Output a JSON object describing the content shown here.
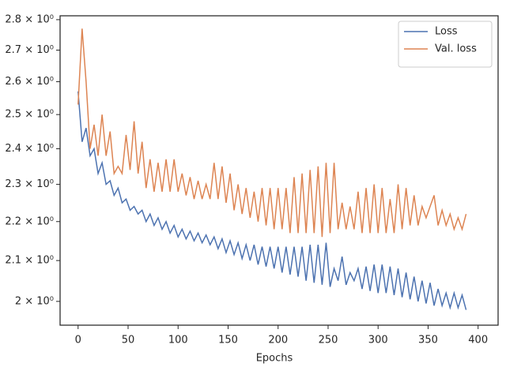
{
  "chart_data": {
    "type": "line",
    "x_label": "Epochs",
    "y_scale": "log",
    "grid": false,
    "legend": "upper right",
    "xlim": [
      -18,
      420
    ],
    "xticks": [
      0,
      50,
      100,
      150,
      200,
      250,
      300,
      350,
      400
    ],
    "ylim": [
      1.944,
      2.813
    ],
    "yticks": [
      {
        "value": 2.0,
        "label": "2 × 10⁰"
      },
      {
        "value": 2.1,
        "label": "2.1 × 10⁰"
      },
      {
        "value": 2.2,
        "label": "2.2 × 10⁰"
      },
      {
        "value": 2.3,
        "label": "2.3 × 10⁰"
      },
      {
        "value": 2.4,
        "label": "2.4 × 10⁰"
      },
      {
        "value": 2.5,
        "label": "2.5 × 10⁰"
      },
      {
        "value": 2.6,
        "label": "2.6 × 10⁰"
      },
      {
        "value": 2.7,
        "label": "2.7 × 10⁰"
      },
      {
        "value": 2.8,
        "label": "2.8 × 10⁰"
      }
    ],
    "x": [
      0,
      4,
      8,
      12,
      16,
      20,
      24,
      28,
      32,
      36,
      40,
      44,
      48,
      52,
      56,
      60,
      64,
      68,
      72,
      76,
      80,
      84,
      88,
      92,
      96,
      100,
      104,
      108,
      112,
      116,
      120,
      124,
      128,
      132,
      136,
      140,
      144,
      148,
      152,
      156,
      160,
      164,
      168,
      172,
      176,
      180,
      184,
      188,
      192,
      196,
      200,
      204,
      208,
      212,
      216,
      220,
      224,
      228,
      232,
      236,
      240,
      244,
      248,
      252,
      256,
      260,
      264,
      268,
      272,
      276,
      280,
      284,
      288,
      292,
      296,
      300,
      304,
      308,
      312,
      316,
      320,
      324,
      328,
      332,
      336,
      340,
      344,
      348,
      352,
      356,
      360,
      364,
      368,
      372,
      376,
      380,
      384,
      388
    ],
    "series": [
      {
        "name": "Loss",
        "color": "#4c72b0",
        "values": [
          2.57,
          2.42,
          2.46,
          2.38,
          2.4,
          2.33,
          2.36,
          2.3,
          2.31,
          2.27,
          2.29,
          2.25,
          2.26,
          2.23,
          2.24,
          2.22,
          2.23,
          2.2,
          2.22,
          2.19,
          2.21,
          2.18,
          2.2,
          2.17,
          2.19,
          2.16,
          2.18,
          2.155,
          2.175,
          2.15,
          2.17,
          2.145,
          2.165,
          2.14,
          2.16,
          2.13,
          2.155,
          2.12,
          2.15,
          2.115,
          2.145,
          2.105,
          2.14,
          2.1,
          2.14,
          2.09,
          2.135,
          2.085,
          2.135,
          2.08,
          2.135,
          2.07,
          2.135,
          2.065,
          2.135,
          2.06,
          2.135,
          2.05,
          2.14,
          2.045,
          2.14,
          2.04,
          2.145,
          2.035,
          2.08,
          2.05,
          2.11,
          2.04,
          2.07,
          2.05,
          2.08,
          2.03,
          2.085,
          2.025,
          2.09,
          2.02,
          2.09,
          2.02,
          2.085,
          2.015,
          2.08,
          2.01,
          2.07,
          2.005,
          2.06,
          2.0,
          2.05,
          1.995,
          2.045,
          1.99,
          2.03,
          1.99,
          2.02,
          1.985,
          2.02,
          1.985,
          2.015,
          1.98
        ]
      },
      {
        "name": "Val. loss",
        "color": "#dd8452",
        "values": [
          2.53,
          2.77,
          2.6,
          2.4,
          2.47,
          2.38,
          2.5,
          2.38,
          2.45,
          2.33,
          2.35,
          2.33,
          2.44,
          2.34,
          2.48,
          2.33,
          2.42,
          2.29,
          2.37,
          2.28,
          2.36,
          2.28,
          2.37,
          2.28,
          2.37,
          2.28,
          2.33,
          2.27,
          2.32,
          2.26,
          2.31,
          2.26,
          2.3,
          2.26,
          2.36,
          2.26,
          2.35,
          2.25,
          2.33,
          2.23,
          2.3,
          2.22,
          2.29,
          2.21,
          2.28,
          2.2,
          2.29,
          2.19,
          2.29,
          2.18,
          2.29,
          2.18,
          2.29,
          2.17,
          2.32,
          2.17,
          2.33,
          2.17,
          2.34,
          2.17,
          2.35,
          2.16,
          2.36,
          2.17,
          2.36,
          2.18,
          2.25,
          2.18,
          2.24,
          2.18,
          2.28,
          2.17,
          2.29,
          2.17,
          2.3,
          2.17,
          2.29,
          2.17,
          2.26,
          2.17,
          2.3,
          2.18,
          2.29,
          2.19,
          2.27,
          2.19,
          2.24,
          2.21,
          2.24,
          2.27,
          2.19,
          2.23,
          2.19,
          2.22,
          2.18,
          2.21,
          2.18,
          2.22
        ]
      }
    ]
  }
}
